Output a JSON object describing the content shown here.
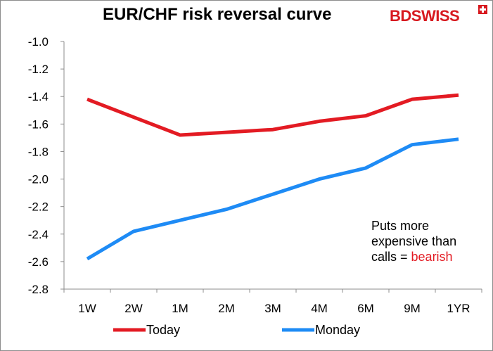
{
  "title": "EUR/CHF risk reversal curve",
  "brand": {
    "bd": "BD",
    "swiss": "SWISS"
  },
  "annotation": {
    "line1": "Puts more",
    "line2": "expensive than",
    "line3_prefix": "calls = ",
    "line3_highlight": "bearish"
  },
  "colors": {
    "today": "#e31b23",
    "monday": "#1e8bf5",
    "highlight": "#e31b23"
  },
  "chart_data": {
    "type": "line",
    "title": "EUR/CHF risk reversal curve",
    "categories": [
      "1W",
      "2W",
      "1M",
      "2M",
      "3M",
      "4M",
      "6M",
      "9M",
      "1YR"
    ],
    "series": [
      {
        "name": "Today",
        "color": "#e31b23",
        "values": [
          -1.42,
          -1.55,
          -1.68,
          -1.66,
          -1.64,
          -1.58,
          -1.54,
          -1.42,
          -1.39
        ]
      },
      {
        "name": "Monday",
        "color": "#1e8bf5",
        "values": [
          -2.58,
          -2.38,
          -2.3,
          -2.22,
          -2.11,
          -2.0,
          -1.92,
          -1.75,
          -1.71
        ]
      }
    ],
    "ylim": [
      -2.8,
      -1.0
    ],
    "yticks": [
      "-1.0",
      "-1.2",
      "-1.4",
      "-1.6",
      "-1.8",
      "-2.0",
      "-2.2",
      "-2.4",
      "-2.6",
      "-2.8"
    ],
    "grid": false,
    "legend": "bottom"
  }
}
